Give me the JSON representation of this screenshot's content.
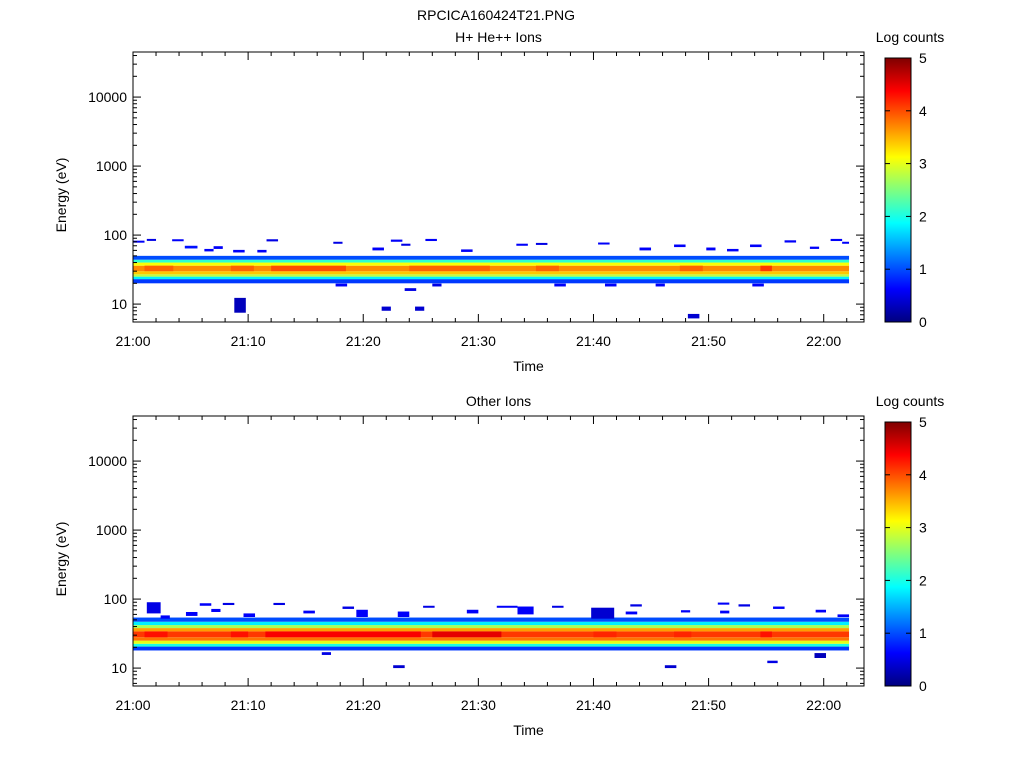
{
  "figure_title": "RPCICA160424T21.PNG",
  "colors": {
    "colormap": [
      "#00007f",
      "#0000ff",
      "#007fff",
      "#00ffff",
      "#7fff7f",
      "#ffff00",
      "#ff7f00",
      "#ff0000",
      "#7f0000"
    ]
  },
  "chart_data": [
    {
      "type": "heatmap",
      "title": "H+ He++ Ions",
      "xlabel": "Time",
      "ylabel": "Energy (eV)",
      "x_ticks": [
        "21:00",
        "21:10",
        "21:20",
        "21:30",
        "21:40",
        "21:50",
        "22:00"
      ],
      "x_tick_minutes": [
        0,
        10,
        20,
        30,
        40,
        50,
        60
      ],
      "xlim_minutes": [
        0,
        63.5
      ],
      "yscale": "log",
      "ylim": [
        5.5,
        45000
      ],
      "y_ticks": [
        "10",
        "100",
        "1000",
        "10000"
      ],
      "y_tick_values": [
        10,
        100,
        1000,
        10000
      ],
      "colorbar": {
        "label": "Log counts",
        "range": [
          0,
          5
        ],
        "ticks": [
          "0",
          "1",
          "2",
          "3",
          "4",
          "5"
        ]
      },
      "band": {
        "time_range_minutes": [
          0,
          62.2
        ],
        "rows": [
          {
            "e_lo": 20,
            "e_hi": 23,
            "level": 0.9
          },
          {
            "e_lo": 23,
            "e_hi": 25,
            "level": 1.8
          },
          {
            "e_lo": 25,
            "e_hi": 27,
            "level": 2.8
          },
          {
            "e_lo": 27,
            "e_hi": 30,
            "level": 3.4
          },
          {
            "e_lo": 30,
            "e_hi": 36,
            "level": 3.7
          },
          {
            "e_lo": 36,
            "e_hi": 40,
            "level": 3.1
          },
          {
            "e_lo": 40,
            "e_hi": 44,
            "level": 2.1
          },
          {
            "e_lo": 44,
            "e_hi": 50,
            "level": 1.0
          }
        ],
        "peak_cells": [
          {
            "t0": 1.0,
            "t1": 3.5,
            "e_lo": 30,
            "e_hi": 36,
            "level": 3.9
          },
          {
            "t0": 8.5,
            "t1": 10.5,
            "e_lo": 30,
            "e_hi": 36,
            "level": 3.9
          },
          {
            "t0": 12.0,
            "t1": 18.5,
            "e_lo": 30,
            "e_hi": 36,
            "level": 4.0
          },
          {
            "t0": 24.0,
            "t1": 31.0,
            "e_lo": 30,
            "e_hi": 36,
            "level": 3.9
          },
          {
            "t0": 35.0,
            "t1": 37.0,
            "e_lo": 30,
            "e_hi": 36,
            "level": 3.9
          },
          {
            "t0": 47.5,
            "t1": 49.5,
            "e_lo": 30,
            "e_hi": 36,
            "level": 3.9
          },
          {
            "t0": 54.5,
            "t1": 55.5,
            "e_lo": 30,
            "e_hi": 36,
            "level": 4.1
          }
        ]
      },
      "speckles": [
        {
          "t0": 0.0,
          "t1": 1.0,
          "e_lo": 78,
          "e_hi": 83,
          "level": 0.6
        },
        {
          "t0": 1.2,
          "t1": 2.0,
          "e_lo": 83,
          "e_hi": 88,
          "level": 0.5
        },
        {
          "t0": 3.4,
          "t1": 4.4,
          "e_lo": 82,
          "e_hi": 87,
          "level": 0.6
        },
        {
          "t0": 4.5,
          "t1": 5.6,
          "e_lo": 64,
          "e_hi": 70,
          "level": 0.7
        },
        {
          "t0": 6.2,
          "t1": 7.0,
          "e_lo": 58,
          "e_hi": 63,
          "level": 0.6
        },
        {
          "t0": 7.0,
          "t1": 7.8,
          "e_lo": 63,
          "e_hi": 69,
          "level": 0.6
        },
        {
          "t0": 8.7,
          "t1": 9.7,
          "e_lo": 56,
          "e_hi": 61,
          "level": 0.6
        },
        {
          "t0": 8.8,
          "t1": 9.8,
          "e_lo": 7.5,
          "e_hi": 12.3,
          "level": 0.3
        },
        {
          "t0": 10.8,
          "t1": 11.6,
          "e_lo": 56,
          "e_hi": 61,
          "level": 0.6
        },
        {
          "t0": 11.6,
          "t1": 12.6,
          "e_lo": 81,
          "e_hi": 87,
          "level": 0.5
        },
        {
          "t0": 17.4,
          "t1": 18.2,
          "e_lo": 75,
          "e_hi": 80,
          "level": 0.5
        },
        {
          "t0": 17.6,
          "t1": 18.6,
          "e_lo": 18,
          "e_hi": 19.8,
          "level": 0.6
        },
        {
          "t0": 20.8,
          "t1": 21.8,
          "e_lo": 60,
          "e_hi": 66,
          "level": 0.6
        },
        {
          "t0": 21.6,
          "t1": 22.4,
          "e_lo": 8,
          "e_hi": 9.2,
          "level": 0.4
        },
        {
          "t0": 22.4,
          "t1": 23.4,
          "e_lo": 80,
          "e_hi": 86,
          "level": 0.6
        },
        {
          "t0": 23.3,
          "t1": 24.1,
          "e_lo": 70,
          "e_hi": 75,
          "level": 0.5
        },
        {
          "t0": 23.6,
          "t1": 24.6,
          "e_lo": 15.5,
          "e_hi": 17,
          "level": 0.5
        },
        {
          "t0": 24.5,
          "t1": 25.3,
          "e_lo": 8,
          "e_hi": 9.2,
          "level": 0.4
        },
        {
          "t0": 25.4,
          "t1": 26.4,
          "e_lo": 82,
          "e_hi": 88,
          "level": 0.6
        },
        {
          "t0": 26.0,
          "t1": 26.8,
          "e_lo": 18,
          "e_hi": 19.8,
          "level": 0.5
        },
        {
          "t0": 28.5,
          "t1": 29.5,
          "e_lo": 57,
          "e_hi": 62,
          "level": 0.6
        },
        {
          "t0": 33.3,
          "t1": 34.3,
          "e_lo": 70,
          "e_hi": 75,
          "level": 0.6
        },
        {
          "t0": 35.0,
          "t1": 36.0,
          "e_lo": 72,
          "e_hi": 77,
          "level": 0.5
        },
        {
          "t0": 36.6,
          "t1": 37.6,
          "e_lo": 18,
          "e_hi": 19.8,
          "level": 0.6
        },
        {
          "t0": 40.4,
          "t1": 41.4,
          "e_lo": 73,
          "e_hi": 78,
          "level": 0.6
        },
        {
          "t0": 41.0,
          "t1": 42.0,
          "e_lo": 18,
          "e_hi": 19.8,
          "level": 0.6
        },
        {
          "t0": 44.0,
          "t1": 45.0,
          "e_lo": 60,
          "e_hi": 66,
          "level": 0.6
        },
        {
          "t0": 45.4,
          "t1": 46.2,
          "e_lo": 18,
          "e_hi": 19.8,
          "level": 0.6
        },
        {
          "t0": 47.0,
          "t1": 48.0,
          "e_lo": 67,
          "e_hi": 73,
          "level": 0.6
        },
        {
          "t0": 48.2,
          "t1": 49.2,
          "e_lo": 6.2,
          "e_hi": 7.2,
          "level": 0.4
        },
        {
          "t0": 49.8,
          "t1": 50.6,
          "e_lo": 60,
          "e_hi": 66,
          "level": 0.6
        },
        {
          "t0": 51.6,
          "t1": 52.6,
          "e_lo": 58,
          "e_hi": 63,
          "level": 0.6
        },
        {
          "t0": 53.6,
          "t1": 54.6,
          "e_lo": 67,
          "e_hi": 73,
          "level": 0.6
        },
        {
          "t0": 53.8,
          "t1": 54.8,
          "e_lo": 18,
          "e_hi": 19.8,
          "level": 0.6
        },
        {
          "t0": 56.6,
          "t1": 57.6,
          "e_lo": 78,
          "e_hi": 84,
          "level": 0.6
        },
        {
          "t0": 58.8,
          "t1": 59.6,
          "e_lo": 63,
          "e_hi": 68,
          "level": 0.6
        },
        {
          "t0": 60.6,
          "t1": 61.6,
          "e_lo": 82,
          "e_hi": 88,
          "level": 0.6
        },
        {
          "t0": 61.6,
          "t1": 62.2,
          "e_lo": 75,
          "e_hi": 80,
          "level": 0.6
        }
      ]
    },
    {
      "type": "heatmap",
      "title": "Other Ions",
      "xlabel": "Time",
      "ylabel": "Energy (eV)",
      "x_ticks": [
        "21:00",
        "21:10",
        "21:20",
        "21:30",
        "21:40",
        "21:50",
        "22:00"
      ],
      "x_tick_minutes": [
        0,
        10,
        20,
        30,
        40,
        50,
        60
      ],
      "xlim_minutes": [
        0,
        63.5
      ],
      "yscale": "log",
      "ylim": [
        5.5,
        45000
      ],
      "y_ticks": [
        "10",
        "100",
        "1000",
        "10000"
      ],
      "y_tick_values": [
        10,
        100,
        1000,
        10000
      ],
      "colorbar": {
        "label": "Log counts",
        "range": [
          0,
          5
        ],
        "ticks": [
          "0",
          "1",
          "2",
          "3",
          "4",
          "5"
        ]
      },
      "band": {
        "time_range_minutes": [
          0,
          62.2
        ],
        "rows": [
          {
            "e_lo": 18,
            "e_hi": 20.5,
            "level": 0.9
          },
          {
            "e_lo": 20.5,
            "e_hi": 22.5,
            "level": 2.0
          },
          {
            "e_lo": 22.5,
            "e_hi": 25,
            "level": 3.0
          },
          {
            "e_lo": 25,
            "e_hi": 28,
            "level": 3.8
          },
          {
            "e_lo": 28,
            "e_hi": 34,
            "level": 4.1
          },
          {
            "e_lo": 34,
            "e_hi": 38,
            "level": 3.6
          },
          {
            "e_lo": 38,
            "e_hi": 42,
            "level": 2.7
          },
          {
            "e_lo": 42,
            "e_hi": 47,
            "level": 1.8
          },
          {
            "e_lo": 47,
            "e_hi": 54,
            "level": 1.0
          }
        ],
        "peak_cells": [
          {
            "t0": 1.0,
            "t1": 3.0,
            "e_lo": 28,
            "e_hi": 34,
            "level": 4.3
          },
          {
            "t0": 8.5,
            "t1": 10.0,
            "e_lo": 28,
            "e_hi": 34,
            "level": 4.3
          },
          {
            "t0": 11.5,
            "t1": 25.0,
            "e_lo": 28,
            "e_hi": 34,
            "level": 4.4
          },
          {
            "t0": 26.0,
            "t1": 32.0,
            "e_lo": 28,
            "e_hi": 34,
            "level": 4.5
          },
          {
            "t0": 40.0,
            "t1": 42.0,
            "e_lo": 28,
            "e_hi": 34,
            "level": 4.2
          },
          {
            "t0": 47.0,
            "t1": 48.5,
            "e_lo": 28,
            "e_hi": 34,
            "level": 4.2
          },
          {
            "t0": 54.5,
            "t1": 55.5,
            "e_lo": 28,
            "e_hi": 34,
            "level": 4.3
          }
        ]
      },
      "speckles": [
        {
          "t0": 1.2,
          "t1": 2.4,
          "e_lo": 62,
          "e_hi": 90,
          "level": 0.5
        },
        {
          "t0": 2.4,
          "t1": 3.2,
          "e_lo": 52,
          "e_hi": 58,
          "level": 0.6
        },
        {
          "t0": 4.6,
          "t1": 5.6,
          "e_lo": 57,
          "e_hi": 65,
          "level": 0.6
        },
        {
          "t0": 5.8,
          "t1": 6.8,
          "e_lo": 80,
          "e_hi": 87,
          "level": 0.6
        },
        {
          "t0": 6.8,
          "t1": 7.6,
          "e_lo": 65,
          "e_hi": 72,
          "level": 0.6
        },
        {
          "t0": 7.8,
          "t1": 8.8,
          "e_lo": 82,
          "e_hi": 88,
          "level": 0.5
        },
        {
          "t0": 9.6,
          "t1": 10.6,
          "e_lo": 55,
          "e_hi": 62,
          "level": 0.6
        },
        {
          "t0": 12.2,
          "t1": 13.2,
          "e_lo": 82,
          "e_hi": 88,
          "level": 0.5
        },
        {
          "t0": 14.8,
          "t1": 15.8,
          "e_lo": 62,
          "e_hi": 68,
          "level": 0.6
        },
        {
          "t0": 16.4,
          "t1": 17.2,
          "e_lo": 15.5,
          "e_hi": 17,
          "level": 0.5
        },
        {
          "t0": 18.2,
          "t1": 19.2,
          "e_lo": 72,
          "e_hi": 78,
          "level": 0.5
        },
        {
          "t0": 19.4,
          "t1": 20.4,
          "e_lo": 55,
          "e_hi": 70,
          "level": 0.6
        },
        {
          "t0": 22.6,
          "t1": 23.6,
          "e_lo": 10,
          "e_hi": 11,
          "level": 0.4
        },
        {
          "t0": 23.0,
          "t1": 24.0,
          "e_lo": 55,
          "e_hi": 66,
          "level": 0.6
        },
        {
          "t0": 25.2,
          "t1": 26.2,
          "e_lo": 75,
          "e_hi": 80,
          "level": 0.5
        },
        {
          "t0": 29.0,
          "t1": 30.0,
          "e_lo": 62,
          "e_hi": 70,
          "level": 0.6
        },
        {
          "t0": 31.6,
          "t1": 33.4,
          "e_lo": 75,
          "e_hi": 80,
          "level": 0.6
        },
        {
          "t0": 33.4,
          "t1": 34.8,
          "e_lo": 60,
          "e_hi": 78,
          "level": 0.6
        },
        {
          "t0": 36.4,
          "t1": 37.4,
          "e_lo": 75,
          "e_hi": 80,
          "level": 0.5
        },
        {
          "t0": 39.8,
          "t1": 41.8,
          "e_lo": 52,
          "e_hi": 75,
          "level": 0.4
        },
        {
          "t0": 42.8,
          "t1": 43.8,
          "e_lo": 60,
          "e_hi": 66,
          "level": 0.6
        },
        {
          "t0": 43.2,
          "t1": 44.2,
          "e_lo": 78,
          "e_hi": 84,
          "level": 0.5
        },
        {
          "t0": 46.2,
          "t1": 47.2,
          "e_lo": 10,
          "e_hi": 11,
          "level": 0.4
        },
        {
          "t0": 47.6,
          "t1": 48.4,
          "e_lo": 64,
          "e_hi": 69,
          "level": 0.6
        },
        {
          "t0": 50.8,
          "t1": 51.8,
          "e_lo": 83,
          "e_hi": 89,
          "level": 0.6
        },
        {
          "t0": 51.0,
          "t1": 51.8,
          "e_lo": 62,
          "e_hi": 68,
          "level": 0.6
        },
        {
          "t0": 52.6,
          "t1": 53.6,
          "e_lo": 78,
          "e_hi": 84,
          "level": 0.5
        },
        {
          "t0": 55.1,
          "t1": 56.0,
          "e_lo": 11.8,
          "e_hi": 12.8,
          "level": 0.5
        },
        {
          "t0": 55.6,
          "t1": 56.6,
          "e_lo": 72,
          "e_hi": 78,
          "level": 0.6
        },
        {
          "t0": 59.2,
          "t1": 60.2,
          "e_lo": 14,
          "e_hi": 16.5,
          "level": 0.3
        },
        {
          "t0": 59.3,
          "t1": 60.2,
          "e_lo": 64,
          "e_hi": 70,
          "level": 0.6
        },
        {
          "t0": 61.2,
          "t1": 62.2,
          "e_lo": 55,
          "e_hi": 60,
          "level": 0.6
        }
      ]
    }
  ]
}
